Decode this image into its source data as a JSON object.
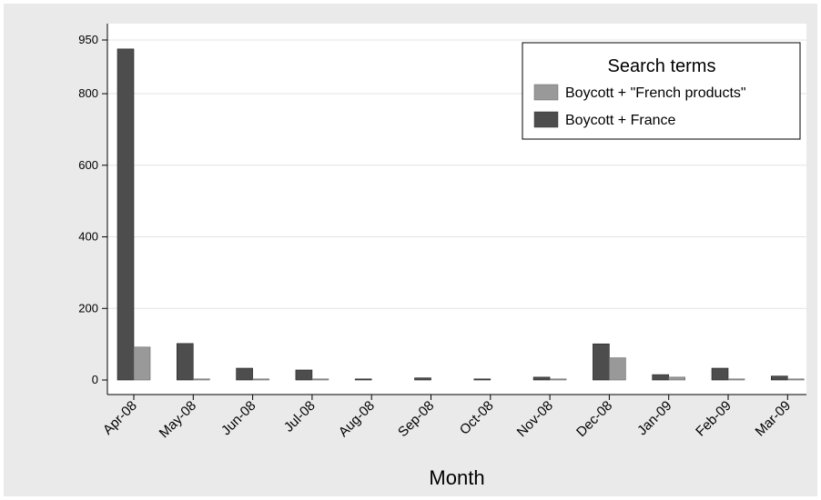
{
  "chart_data": {
    "type": "bar",
    "title": "",
    "xlabel": "Month",
    "ylabel": "",
    "categories": [
      "Apr-08",
      "May-08",
      "Jun-08",
      "Jul-08",
      "Aug-08",
      "Sep-08",
      "Oct-08",
      "Nov-08",
      "Dec-08",
      "Jan-09",
      "Feb-09",
      "Mar-09"
    ],
    "series": [
      {
        "name": "Boycott + France",
        "color": "#4d4d4d",
        "values": [
          925,
          102,
          33,
          28,
          3,
          6,
          3,
          8,
          101,
          15,
          33,
          11
        ]
      },
      {
        "name": "Boycott + \"French products\"",
        "color": "#999999",
        "values": [
          92,
          3,
          3,
          3,
          0,
          0,
          0,
          3,
          62,
          8,
          3,
          3
        ]
      }
    ],
    "ylim": [
      0,
      950
    ],
    "yticks": [
      0,
      200,
      400,
      600,
      800,
      950
    ],
    "grid": true,
    "legend": {
      "title": "Search terms",
      "position": "top-right",
      "entries": [
        {
          "label": "Boycott + \"French products\"",
          "color": "#999999"
        },
        {
          "label": "Boycott + France",
          "color": "#4d4d4d"
        }
      ]
    }
  }
}
